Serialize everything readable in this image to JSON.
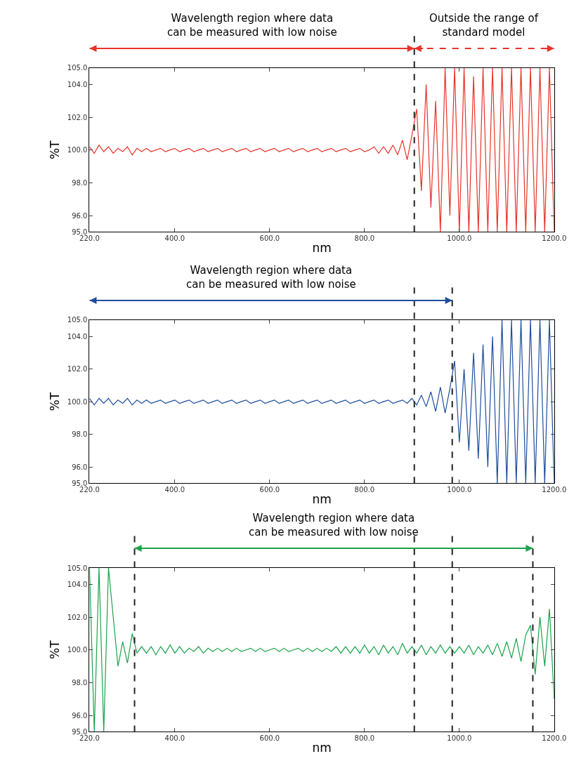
{
  "chart_data": [
    {
      "type": "line",
      "xlabel": "nm",
      "ylabel": "%T",
      "x": [
        220,
        230,
        240,
        250,
        260,
        270,
        280,
        290,
        300,
        310,
        320,
        330,
        340,
        350,
        360,
        370,
        380,
        390,
        400,
        410,
        420,
        430,
        440,
        450,
        460,
        470,
        480,
        490,
        500,
        510,
        520,
        530,
        540,
        550,
        560,
        570,
        580,
        590,
        600,
        610,
        620,
        630,
        640,
        650,
        660,
        670,
        680,
        690,
        700,
        710,
        720,
        730,
        740,
        750,
        760,
        770,
        780,
        790,
        800,
        810,
        820,
        830,
        840,
        850,
        860,
        870,
        880,
        890,
        900,
        910,
        920,
        930,
        940,
        950,
        960,
        970,
        980,
        990,
        1000,
        1010,
        1020,
        1030,
        1040,
        1050,
        1060,
        1070,
        1080,
        1090,
        1100,
        1110,
        1120,
        1130,
        1140,
        1150,
        1160,
        1170,
        1180,
        1190,
        1200
      ],
      "series": [
        {
          "color": "#e8332a",
          "values": [
            100.2,
            99.8,
            100.3,
            99.9,
            100.2,
            99.8,
            100.1,
            99.9,
            100.2,
            99.7,
            100.1,
            99.9,
            100.1,
            99.9,
            100.0,
            100.1,
            99.9,
            100.0,
            100.1,
            99.9,
            100.0,
            100.1,
            99.9,
            100.0,
            100.1,
            99.9,
            100.0,
            100.1,
            99.9,
            100.0,
            100.1,
            99.9,
            100.0,
            100.1,
            99.9,
            100.0,
            100.1,
            99.9,
            100.0,
            100.1,
            99.9,
            100.0,
            100.1,
            99.9,
            100.0,
            100.1,
            99.9,
            100.0,
            100.1,
            99.9,
            100.0,
            100.1,
            99.9,
            100.0,
            100.1,
            99.9,
            100.0,
            100.1,
            99.9,
            100.0,
            100.2,
            99.8,
            100.2,
            99.8,
            100.3,
            99.7,
            100.6,
            99.4,
            100.9,
            102.5,
            97.5,
            104.0,
            96.5,
            103.0,
            95.0,
            105.0,
            96.0,
            105.0,
            95.0,
            105.0,
            95.0,
            104.5,
            95.0,
            105.0,
            95.0,
            105.0,
            95.0,
            105.0,
            95.0,
            105.0,
            95.0,
            105.0,
            95.0,
            105.0,
            95.0,
            105.0,
            95.0,
            105.0,
            95.0
          ]
        }
      ],
      "xlim": [
        220,
        1200
      ],
      "ylim": [
        95,
        105
      ],
      "xticks": [
        {
          "value": 220,
          "label": "220.0"
        },
        {
          "value": 400,
          "label": "400.0"
        },
        {
          "value": 600,
          "label": "600.0"
        },
        {
          "value": 800,
          "label": "800.0"
        },
        {
          "value": 1000,
          "label": "1000.0"
        },
        {
          "value": 1200,
          "label": "1200.0"
        }
      ],
      "yticks": [
        {
          "value": 95,
          "label": "95.0"
        },
        {
          "value": 96,
          "label": "96.0"
        },
        {
          "value": 98,
          "label": "98.0"
        },
        {
          "value": 100,
          "label": "100.0"
        },
        {
          "value": 102,
          "label": "102.0"
        },
        {
          "value": 104,
          "label": "104.0"
        },
        {
          "value": 105,
          "label": "105.0"
        }
      ],
      "ref_lines": [
        {
          "axis": "x",
          "value": 905,
          "color": "#222222",
          "line_style": "dashed"
        }
      ],
      "annotations": [
        "Wavelength region where data\ncan be measured with low noise",
        "Outside the range of\nstandard model"
      ]
    },
    {
      "type": "line",
      "xlabel": "nm",
      "ylabel": "%T",
      "x": [
        220,
        230,
        240,
        250,
        260,
        270,
        280,
        290,
        300,
        310,
        320,
        330,
        340,
        350,
        360,
        370,
        380,
        390,
        400,
        410,
        420,
        430,
        440,
        450,
        460,
        470,
        480,
        490,
        500,
        510,
        520,
        530,
        540,
        550,
        560,
        570,
        580,
        590,
        600,
        610,
        620,
        630,
        640,
        650,
        660,
        670,
        680,
        690,
        700,
        710,
        720,
        730,
        740,
        750,
        760,
        770,
        780,
        790,
        800,
        810,
        820,
        830,
        840,
        850,
        860,
        870,
        880,
        890,
        900,
        910,
        920,
        930,
        940,
        950,
        960,
        970,
        980,
        990,
        1000,
        1010,
        1020,
        1030,
        1040,
        1050,
        1060,
        1070,
        1080,
        1090,
        1100,
        1110,
        1120,
        1130,
        1140,
        1150,
        1160,
        1170,
        1180,
        1190,
        1200
      ],
      "series": [
        {
          "color": "#1f4e9c",
          "values": [
            100.2,
            99.8,
            100.2,
            99.9,
            100.2,
            99.8,
            100.1,
            99.9,
            100.2,
            99.8,
            100.1,
            99.9,
            100.1,
            99.9,
            100.0,
            100.1,
            99.9,
            100.0,
            100.1,
            99.9,
            100.0,
            100.1,
            99.9,
            100.0,
            100.1,
            99.9,
            100.0,
            100.1,
            99.9,
            100.0,
            100.1,
            99.9,
            100.0,
            100.1,
            99.9,
            100.0,
            100.1,
            99.9,
            100.0,
            100.1,
            99.9,
            100.0,
            100.1,
            99.9,
            100.0,
            100.1,
            99.9,
            100.0,
            100.1,
            99.9,
            100.0,
            100.1,
            99.9,
            100.0,
            100.1,
            99.9,
            100.0,
            100.1,
            99.9,
            100.0,
            100.1,
            99.9,
            100.0,
            100.1,
            99.9,
            100.0,
            100.1,
            99.9,
            100.2,
            99.8,
            100.4,
            99.7,
            100.6,
            99.4,
            100.9,
            99.3,
            100.8,
            102.5,
            97.5,
            102.0,
            97.0,
            103.0,
            96.5,
            103.5,
            96.0,
            104.0,
            95.0,
            105.0,
            95.0,
            105.0,
            95.0,
            105.0,
            95.0,
            105.0,
            95.0,
            105.0,
            95.0,
            105.0,
            95.0
          ]
        }
      ],
      "xlim": [
        220,
        1200
      ],
      "ylim": [
        95,
        105
      ],
      "xticks": [
        {
          "value": 220,
          "label": "220.0"
        },
        {
          "value": 400,
          "label": "400.0"
        },
        {
          "value": 600,
          "label": "600.0"
        },
        {
          "value": 800,
          "label": "800.0"
        },
        {
          "value": 1000,
          "label": "1000.0"
        },
        {
          "value": 1200,
          "label": "1200.0"
        }
      ],
      "yticks": [
        {
          "value": 95,
          "label": "95.0"
        },
        {
          "value": 96,
          "label": "96.0"
        },
        {
          "value": 98,
          "label": "98.0"
        },
        {
          "value": 100,
          "label": "100.0"
        },
        {
          "value": 102,
          "label": "102.0"
        },
        {
          "value": 104,
          "label": "104.0"
        },
        {
          "value": 105,
          "label": "105.0"
        }
      ],
      "ref_lines": [
        {
          "axis": "x",
          "value": 905,
          "color": "#222222",
          "line_style": "dashed"
        },
        {
          "axis": "x",
          "value": 985,
          "color": "#222222",
          "line_style": "dashed"
        }
      ],
      "annotations": [
        "Wavelength region where data\ncan be measured with low noise"
      ]
    },
    {
      "type": "line",
      "xlabel": "nm",
      "ylabel": "%T",
      "x": [
        220,
        230,
        240,
        250,
        260,
        270,
        280,
        290,
        300,
        310,
        320,
        330,
        340,
        350,
        360,
        370,
        380,
        390,
        400,
        410,
        420,
        430,
        440,
        450,
        460,
        470,
        480,
        490,
        500,
        510,
        520,
        530,
        540,
        550,
        560,
        570,
        580,
        590,
        600,
        610,
        620,
        630,
        640,
        650,
        660,
        670,
        680,
        690,
        700,
        710,
        720,
        730,
        740,
        750,
        760,
        770,
        780,
        790,
        800,
        810,
        820,
        830,
        840,
        850,
        860,
        870,
        880,
        890,
        900,
        910,
        920,
        930,
        940,
        950,
        960,
        970,
        980,
        990,
        1000,
        1010,
        1020,
        1030,
        1040,
        1050,
        1060,
        1070,
        1080,
        1090,
        1100,
        1110,
        1120,
        1130,
        1140,
        1150,
        1160,
        1170,
        1180,
        1190,
        1200
      ],
      "series": [
        {
          "color": "#1aa34a",
          "values": [
            105.0,
            95.0,
            105.0,
            95.0,
            105.0,
            102.0,
            99.0,
            100.5,
            99.2,
            101.0,
            99.8,
            100.2,
            99.8,
            100.2,
            99.7,
            100.2,
            99.8,
            100.3,
            99.8,
            100.2,
            99.8,
            100.1,
            99.9,
            100.2,
            99.8,
            100.1,
            99.9,
            100.1,
            99.9,
            100.1,
            99.9,
            100.1,
            99.9,
            100.0,
            100.1,
            99.9,
            100.1,
            99.9,
            100.0,
            100.1,
            99.9,
            100.1,
            99.9,
            100.0,
            100.1,
            99.9,
            100.1,
            99.9,
            100.1,
            99.9,
            100.1,
            99.9,
            100.2,
            99.8,
            100.2,
            99.8,
            100.2,
            99.8,
            100.3,
            99.8,
            100.2,
            99.7,
            100.3,
            99.8,
            100.2,
            99.7,
            100.4,
            99.8,
            100.2,
            99.8,
            100.3,
            99.7,
            100.2,
            99.8,
            100.3,
            99.8,
            100.2,
            99.8,
            100.2,
            99.8,
            100.3,
            99.7,
            100.2,
            99.8,
            100.3,
            99.7,
            100.4,
            99.6,
            100.5,
            99.5,
            100.7,
            99.3,
            100.9,
            101.5,
            98.5,
            102.0,
            99.0,
            102.5,
            97.0
          ]
        }
      ],
      "xlim": [
        220,
        1200
      ],
      "ylim": [
        95,
        105
      ],
      "xticks": [
        {
          "value": 220,
          "label": "220.0"
        },
        {
          "value": 400,
          "label": "400.0"
        },
        {
          "value": 600,
          "label": "600.0"
        },
        {
          "value": 800,
          "label": "800.0"
        },
        {
          "value": 1000,
          "label": "1000.0"
        },
        {
          "value": 1200,
          "label": "1200.0"
        }
      ],
      "yticks": [
        {
          "value": 95,
          "label": "95.0"
        },
        {
          "value": 96,
          "label": "96.0"
        },
        {
          "value": 98,
          "label": "98.0"
        },
        {
          "value": 100,
          "label": "100.0"
        },
        {
          "value": 102,
          "label": "102.0"
        },
        {
          "value": 104,
          "label": "104.0"
        },
        {
          "value": 105,
          "label": "105.0"
        }
      ],
      "ref_lines": [
        {
          "axis": "x",
          "value": 315,
          "color": "#222222",
          "line_style": "dashed"
        },
        {
          "axis": "x",
          "value": 905,
          "color": "#222222",
          "line_style": "dashed"
        },
        {
          "axis": "x",
          "value": 985,
          "color": "#222222",
          "line_style": "dashed"
        },
        {
          "axis": "x",
          "value": 1155,
          "color": "#222222",
          "line_style": "dashed"
        }
      ],
      "annotations": [
        "Wavelength region where data\ncan be measured with low noise"
      ]
    }
  ]
}
